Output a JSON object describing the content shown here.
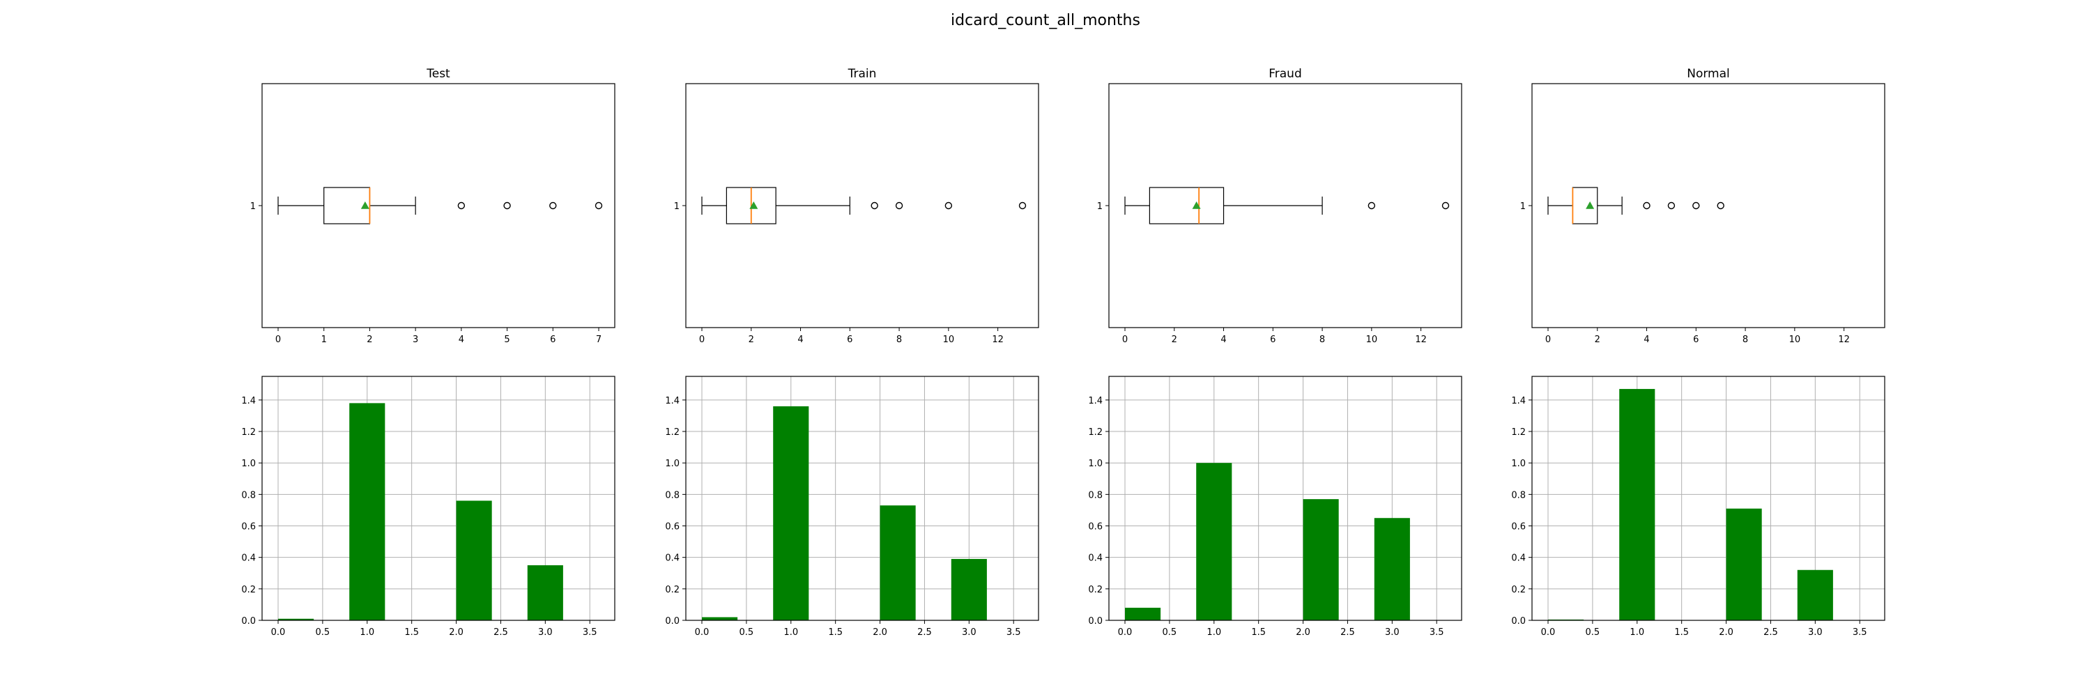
{
  "chart_data": {
    "title": "idcard_count_all_months",
    "panels": [
      {
        "name": "Test",
        "boxplot": {
          "type": "boxplot",
          "title": "Test",
          "category": "1",
          "xlim": [
            -0.35,
            7.35
          ],
          "xticks": [
            0,
            1,
            2,
            3,
            4,
            5,
            6,
            7
          ],
          "whisker_low": 0,
          "q1": 1,
          "median": 2,
          "q3": 2,
          "whisker_high": 3,
          "mean": 1.9,
          "outliers": [
            4,
            5,
            6,
            7
          ]
        },
        "histogram": {
          "type": "bar",
          "bins": [
            [
              0,
              0.4
            ],
            [
              0.8,
              1.2
            ],
            [
              2.0,
              2.4
            ],
            [
              2.8,
              3.2
            ]
          ],
          "values": [
            0.01,
            1.38,
            0.76,
            0.35
          ],
          "xlim": [
            -0.18,
            3.78
          ],
          "xticks": [
            0.0,
            0.5,
            1.0,
            1.5,
            2.0,
            2.5,
            3.0,
            3.5
          ],
          "ylim": [
            0,
            1.55
          ],
          "yticks": [
            0.0,
            0.2,
            0.4,
            0.6,
            0.8,
            1.0,
            1.2,
            1.4
          ],
          "grid": true
        }
      },
      {
        "name": "Train",
        "boxplot": {
          "type": "boxplot",
          "title": "Train",
          "category": "1",
          "xlim": [
            -0.65,
            13.65
          ],
          "xticks": [
            0,
            2,
            4,
            6,
            8,
            10,
            12
          ],
          "whisker_low": 0,
          "q1": 1,
          "median": 2,
          "q3": 3,
          "whisker_high": 6,
          "mean": 2.1,
          "outliers": [
            7,
            8,
            10,
            13
          ]
        },
        "histogram": {
          "type": "bar",
          "bins": [
            [
              0,
              0.4
            ],
            [
              0.8,
              1.2
            ],
            [
              2.0,
              2.4
            ],
            [
              2.8,
              3.2
            ]
          ],
          "values": [
            0.02,
            1.36,
            0.73,
            0.39
          ],
          "xlim": [
            -0.18,
            3.78
          ],
          "xticks": [
            0.0,
            0.5,
            1.0,
            1.5,
            2.0,
            2.5,
            3.0,
            3.5
          ],
          "ylim": [
            0,
            1.55
          ],
          "yticks": [
            0.0,
            0.2,
            0.4,
            0.6,
            0.8,
            1.0,
            1.2,
            1.4
          ],
          "grid": true
        }
      },
      {
        "name": "Fraud",
        "boxplot": {
          "type": "boxplot",
          "title": "Fraud",
          "category": "1",
          "xlim": [
            -0.65,
            13.65
          ],
          "xticks": [
            0,
            2,
            4,
            6,
            8,
            10,
            12
          ],
          "whisker_low": 0,
          "q1": 1,
          "median": 3,
          "q3": 4,
          "whisker_high": 8,
          "mean": 2.9,
          "outliers": [
            10,
            13
          ]
        },
        "histogram": {
          "type": "bar",
          "bins": [
            [
              0,
              0.4
            ],
            [
              0.8,
              1.2
            ],
            [
              2.0,
              2.4
            ],
            [
              2.8,
              3.2
            ]
          ],
          "values": [
            0.08,
            1.0,
            0.77,
            0.65
          ],
          "xlim": [
            -0.18,
            3.78
          ],
          "xticks": [
            0.0,
            0.5,
            1.0,
            1.5,
            2.0,
            2.5,
            3.0,
            3.5
          ],
          "ylim": [
            0,
            1.55
          ],
          "yticks": [
            0.0,
            0.2,
            0.4,
            0.6,
            0.8,
            1.0,
            1.2,
            1.4
          ],
          "grid": true
        }
      },
      {
        "name": "Normal",
        "boxplot": {
          "type": "boxplot",
          "title": "Normal",
          "category": "1",
          "xlim": [
            -0.65,
            13.65
          ],
          "xticks": [
            0,
            2,
            4,
            6,
            8,
            10,
            12
          ],
          "whisker_low": 0,
          "q1": 1,
          "median": 1,
          "q3": 2,
          "whisker_high": 3,
          "mean": 1.7,
          "outliers": [
            4,
            5,
            6,
            7
          ]
        },
        "histogram": {
          "type": "bar",
          "bins": [
            [
              0,
              0.4
            ],
            [
              0.8,
              1.2
            ],
            [
              2.0,
              2.4
            ],
            [
              2.8,
              3.2
            ]
          ],
          "values": [
            0.005,
            1.47,
            0.71,
            0.32
          ],
          "xlim": [
            -0.18,
            3.78
          ],
          "xticks": [
            0.0,
            0.5,
            1.0,
            1.5,
            2.0,
            2.5,
            3.0,
            3.5
          ],
          "ylim": [
            0,
            1.55
          ],
          "yticks": [
            0.0,
            0.2,
            0.4,
            0.6,
            0.8,
            1.0,
            1.2,
            1.4
          ],
          "grid": true
        }
      }
    ],
    "colors": {
      "bar": "#008000",
      "median": "#ff7f0e",
      "mean": "#2ca02c",
      "grid": "#b0b0b0",
      "axis": "#000000"
    }
  }
}
